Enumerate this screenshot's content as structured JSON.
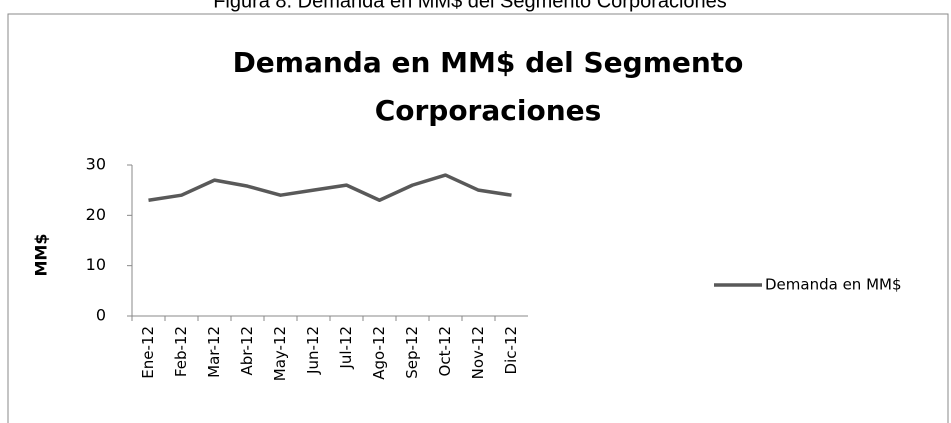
{
  "caption": "Figura 8. Demanda en MM$ del Segmento Corporaciones",
  "chart_data": {
    "type": "line",
    "title_lines": [
      "Demanda en MM$ del Segmento",
      "Corporaciones"
    ],
    "ylabel": "MM$",
    "categories": [
      "Ene-12",
      "Feb-12",
      "Mar-12",
      "Abr-12",
      "May-12",
      "Jun-12",
      "Jul-12",
      "Ago-12",
      "Sep-12",
      "Oct-12",
      "Nov-12",
      "Dic-12"
    ],
    "series": [
      {
        "name": "Demanda en MM$",
        "color": "#595959",
        "values": [
          23,
          24,
          27,
          25.8,
          24,
          25,
          26,
          23,
          26,
          28,
          25,
          24
        ]
      }
    ],
    "ylim": [
      0,
      30
    ],
    "yticks": [
      0,
      10,
      20,
      30
    ],
    "legend": "right"
  }
}
